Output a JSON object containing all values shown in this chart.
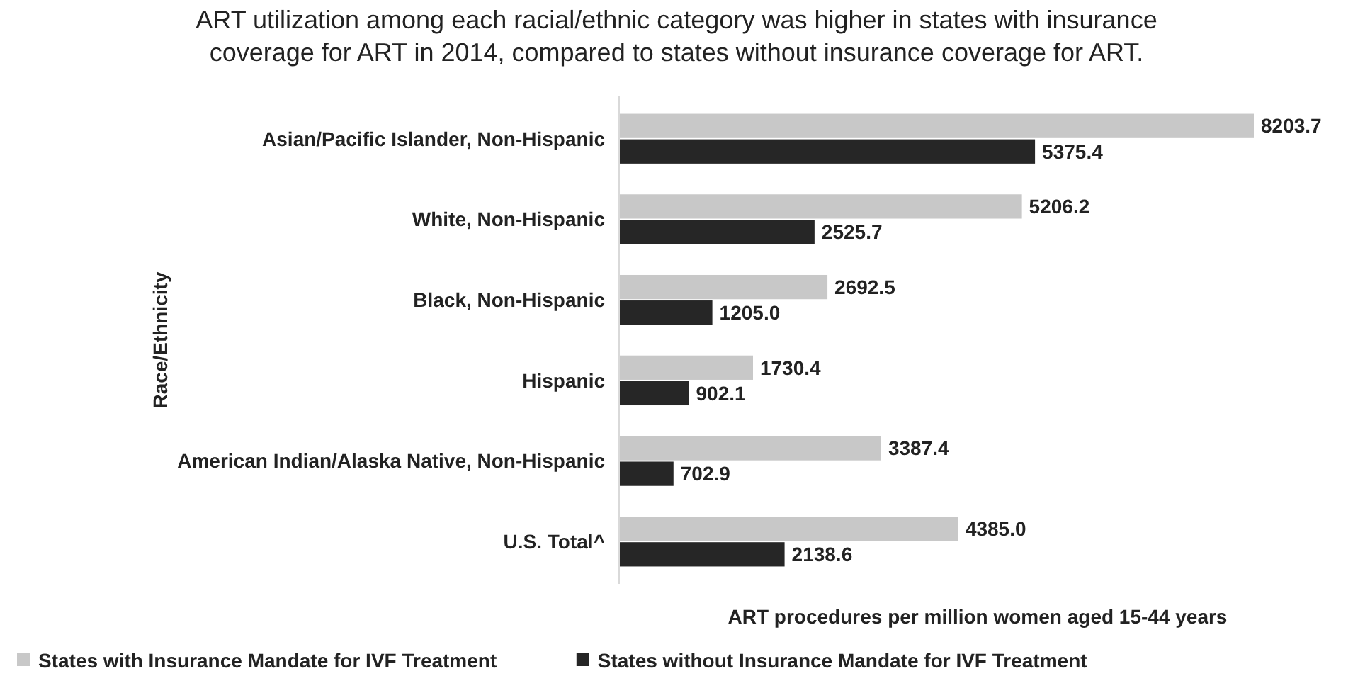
{
  "chart_data": {
    "type": "bar",
    "orientation": "horizontal",
    "title": "ART utilization among each racial/ethnic category was higher in states with insurance coverage for ART in 2014, compared to states without insurance coverage for ART.",
    "xlabel": "ART procedures per million women aged 15-44 years",
    "ylabel": "Race/Ethnicity",
    "categories": [
      "Asian/Pacific Islander, Non-Hispanic",
      "White, Non-Hispanic",
      "Black, Non-Hispanic",
      "Hispanic",
      "American Indian/Alaska Native, Non-Hispanic",
      "U.S. Total^"
    ],
    "series": [
      {
        "name": "States with Insurance Mandate for IVF Treatment",
        "color": "#c8c8c8",
        "values": [
          8203.7,
          5206.2,
          2692.5,
          1730.4,
          3387.4,
          4385.0
        ],
        "value_labels": [
          "8203.7",
          "5206.2",
          "2692.5",
          "1730.4",
          "3387.4",
          "4385.0"
        ]
      },
      {
        "name": "States without Insurance Mandate for IVF Treatment",
        "color": "#262626",
        "values": [
          5375.4,
          2525.7,
          1205.0,
          902.1,
          702.9,
          2138.6
        ],
        "value_labels": [
          "5375.4",
          "2525.7",
          "1205.0",
          "902.1",
          "702.9",
          "2138.6"
        ]
      }
    ],
    "data_labels": true,
    "legend": "bottom",
    "grid": false
  }
}
